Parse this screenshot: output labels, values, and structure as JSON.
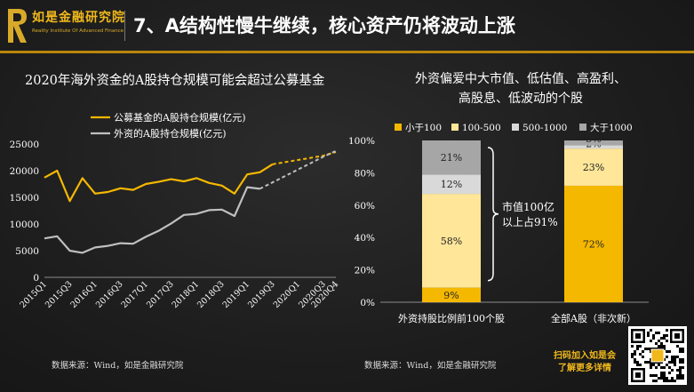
{
  "header": {
    "logo_cn": "如是金融研究院",
    "logo_en": "Reality Institute Of Advanced Finance",
    "title": "7、A结构性慢牛继续，核心资产仍将波动上涨"
  },
  "left_panel": {
    "title": "2020年海外资金的A股持仓规模可能会超过公募基金",
    "source": "数据来源：Wind，如是金融研究院"
  },
  "right_panel": {
    "title_line1": "外资偏爱中大市值、低估值、高盈利、",
    "title_line2": "高股息、低波动的个股",
    "source": "数据来源：Wind，如是金融研究院",
    "annotation_line1": "市值100亿",
    "annotation_line2": "以上占91%"
  },
  "footer": {
    "cta_line1": "扫码加入如是会",
    "cta_line2": "了解更多详情"
  },
  "colors": {
    "gold": "#f5b800",
    "light_yellow": "#ffe699",
    "gray_light": "#d9d9d9",
    "gray_mid": "#a6a6a6",
    "line_gray": "#bfbfbf",
    "accent": "#b8860b"
  },
  "chart_data": [
    {
      "type": "line",
      "legend_position": "top-left",
      "grid": false,
      "ylim": [
        0,
        25000
      ],
      "yticks": [
        "0",
        "5000",
        "10000",
        "15000",
        "20000",
        "25000"
      ],
      "x_tick_labels": [
        "2015Q1",
        "2015Q3",
        "2016Q1",
        "2016Q3",
        "2017Q1",
        "2017Q3",
        "2018Q1",
        "2018Q3",
        "2019Q1",
        "2019Q3",
        "2020Q1",
        "2020Q3",
        "2020Q4"
      ],
      "x": [
        "2015Q1",
        "2015Q2",
        "2015Q3",
        "2015Q4",
        "2016Q1",
        "2016Q2",
        "2016Q3",
        "2016Q4",
        "2017Q1",
        "2017Q2",
        "2017Q3",
        "2017Q4",
        "2018Q1",
        "2018Q2",
        "2018Q3",
        "2018Q4",
        "2019Q1",
        "2019Q2",
        "2019Q3",
        "2019Q4",
        "2020Q1",
        "2020Q2",
        "2020Q3",
        "2020Q4"
      ],
      "series": [
        {
          "name": "公募基金的A股持仓规模(亿元)",
          "color": "#f5b800",
          "values": [
            18700,
            20000,
            14300,
            18600,
            15700,
            16000,
            16700,
            16400,
            17500,
            17900,
            18400,
            18000,
            18600,
            17700,
            17200,
            15700,
            19300,
            19700,
            21200,
            null,
            null,
            null,
            null,
            null
          ],
          "projected": [
            null,
            null,
            null,
            null,
            null,
            null,
            null,
            null,
            null,
            null,
            null,
            null,
            null,
            null,
            null,
            null,
            null,
            null,
            21200,
            21600,
            22000,
            22400,
            22800,
            23500
          ]
        },
        {
          "name": "外资的A股持仓规模(亿元)",
          "color": "#bfbfbf",
          "values": [
            7300,
            7700,
            5000,
            4600,
            5600,
            5900,
            6400,
            6300,
            7600,
            8700,
            10100,
            11700,
            11900,
            12600,
            12700,
            11500,
            16900,
            16600,
            null,
            null,
            null,
            null,
            null,
            null
          ],
          "projected": [
            null,
            null,
            null,
            null,
            null,
            null,
            null,
            null,
            null,
            null,
            null,
            null,
            null,
            null,
            null,
            null,
            null,
            16600,
            17800,
            19000,
            20200,
            21400,
            22600,
            23700
          ]
        }
      ]
    },
    {
      "type": "bar",
      "stacked": true,
      "categories": [
        "外资持股比例前100个股",
        "全部A股（非次新）"
      ],
      "ylim": [
        0,
        100
      ],
      "yticks": [
        "0%",
        "20%",
        "40%",
        "60%",
        "80%",
        "100%"
      ],
      "legend_position": "top",
      "series": [
        {
          "name": "小于100",
          "color": "#f5b800",
          "values": [
            9,
            72
          ],
          "labels": [
            "9%",
            "72%"
          ]
        },
        {
          "name": "100-500",
          "color": "#ffe699",
          "values": [
            58,
            23
          ],
          "labels": [
            "58%",
            "23%"
          ]
        },
        {
          "name": "500-1000",
          "color": "#d9d9d9",
          "values": [
            12,
            2
          ],
          "labels": [
            "12%",
            "2%"
          ]
        },
        {
          "name": "大于1000",
          "color": "#a6a6a6",
          "values": [
            21,
            3
          ],
          "labels": [
            "21%",
            "3%"
          ]
        }
      ]
    }
  ]
}
